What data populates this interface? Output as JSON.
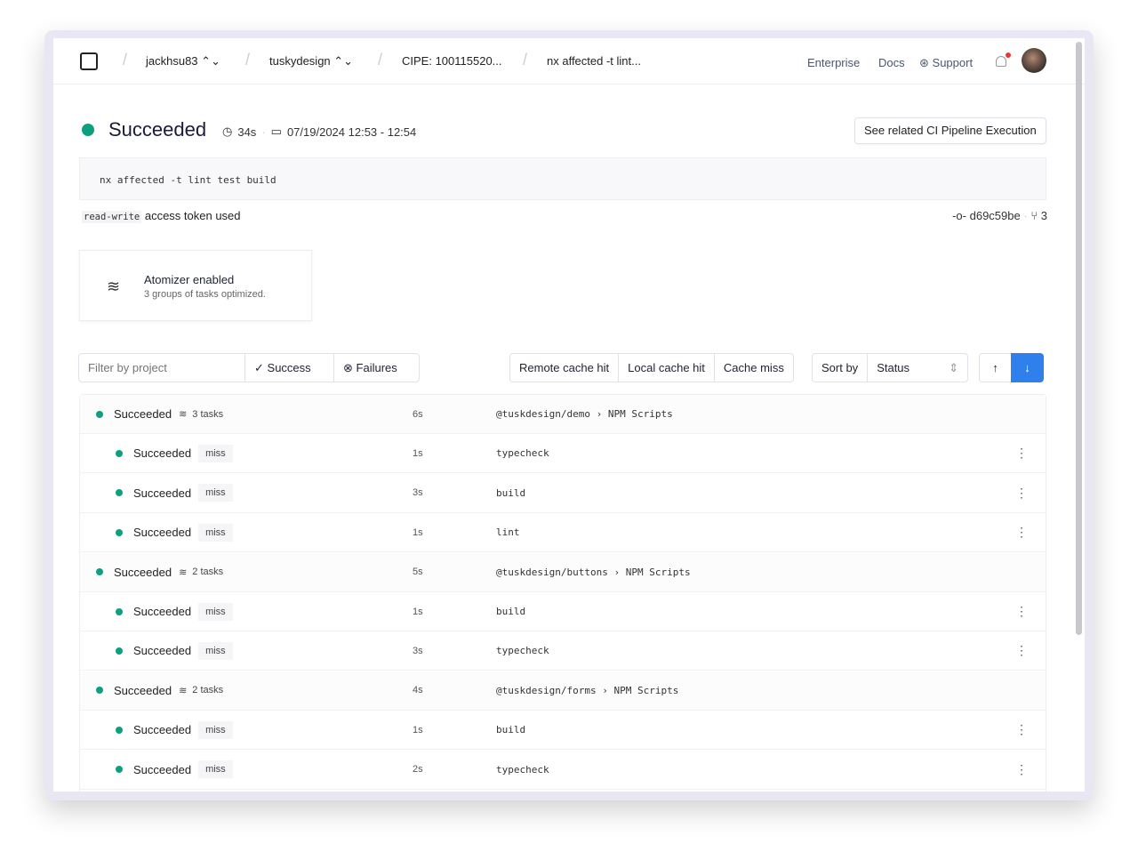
{
  "breadcrumbs": [
    "jackhsu83",
    "tuskydesign",
    "CIPE: 100115520...",
    "nx affected -t lint..."
  ],
  "nav": {
    "enterprise": "Enterprise",
    "docs": "Docs",
    "support": "Support"
  },
  "status": {
    "label": "Succeeded",
    "duration": "34s",
    "time_range": "07/19/2024 12:53 - 12:54",
    "color": "#0e9f7e"
  },
  "related_button": "See related CI Pipeline Execution",
  "command": "nx affected -t lint test build",
  "token": {
    "code": "read-write",
    "text": "access token used"
  },
  "commit": {
    "sha": "d69c59be",
    "branches": "3"
  },
  "atomizer": {
    "title": "Atomizer enabled",
    "subtitle": "3 groups of tasks optimized."
  },
  "filters": {
    "placeholder": "Filter by project",
    "success": "Success",
    "failures": "Failures"
  },
  "cache": [
    "Remote cache hit",
    "Local cache hit",
    "Cache miss"
  ],
  "sort": {
    "label": "Sort by",
    "value": "Status"
  },
  "rows": [
    {
      "group": true,
      "status": "Succeeded",
      "tasks": "3 tasks",
      "duration": "6s",
      "project": "@tuskdesign/demo",
      "target": "NPM Scripts"
    },
    {
      "status": "Succeeded",
      "cache": "miss",
      "duration": "1s",
      "task": "typecheck"
    },
    {
      "status": "Succeeded",
      "cache": "miss",
      "duration": "3s",
      "task": "build"
    },
    {
      "status": "Succeeded",
      "cache": "miss",
      "duration": "1s",
      "task": "lint"
    },
    {
      "group": true,
      "status": "Succeeded",
      "tasks": "2 tasks",
      "duration": "5s",
      "project": "@tuskdesign/buttons",
      "target": "NPM Scripts"
    },
    {
      "status": "Succeeded",
      "cache": "miss",
      "duration": "1s",
      "task": "build"
    },
    {
      "status": "Succeeded",
      "cache": "miss",
      "duration": "3s",
      "task": "typecheck"
    },
    {
      "group": true,
      "status": "Succeeded",
      "tasks": "2 tasks",
      "duration": "4s",
      "project": "@tuskdesign/forms",
      "target": "NPM Scripts"
    },
    {
      "status": "Succeeded",
      "cache": "miss",
      "duration": "1s",
      "task": "build"
    },
    {
      "status": "Succeeded",
      "cache": "miss",
      "duration": "2s",
      "task": "typecheck"
    }
  ]
}
